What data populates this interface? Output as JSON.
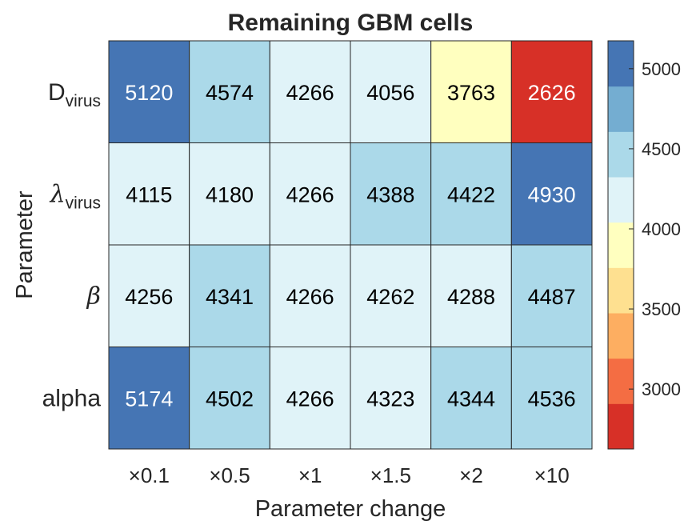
{
  "chart_data": {
    "type": "heatmap",
    "title": "Remaining GBM cells",
    "xlabel": "Parameter change",
    "ylabel": "Parameter",
    "x_categories": [
      "×0.1",
      "×0.5",
      "×1",
      "×1.5",
      "×2",
      "×10"
    ],
    "y_categories": [
      {
        "main": "D",
        "sub": "virus"
      },
      {
        "main": "λ",
        "sub": "virus"
      },
      {
        "main": "β",
        "sub": ""
      },
      {
        "main": "alpha",
        "sub": ""
      }
    ],
    "values": [
      [
        5120,
        4574,
        4266,
        4056,
        3763,
        2626
      ],
      [
        4115,
        4180,
        4266,
        4388,
        4422,
        4930
      ],
      [
        4256,
        4341,
        4266,
        4262,
        4288,
        4487
      ],
      [
        5174,
        4502,
        4266,
        4323,
        4344,
        4536
      ]
    ],
    "colorbar": {
      "range": [
        2626,
        5174
      ],
      "ticks": [
        3000,
        3500,
        4000,
        4500,
        5000
      ],
      "colors": [
        "#d73027",
        "#f46d43",
        "#fdae61",
        "#fee090",
        "#ffffbf",
        "#e0f3f8",
        "#abd9e9",
        "#74add1",
        "#4575b4"
      ]
    }
  }
}
